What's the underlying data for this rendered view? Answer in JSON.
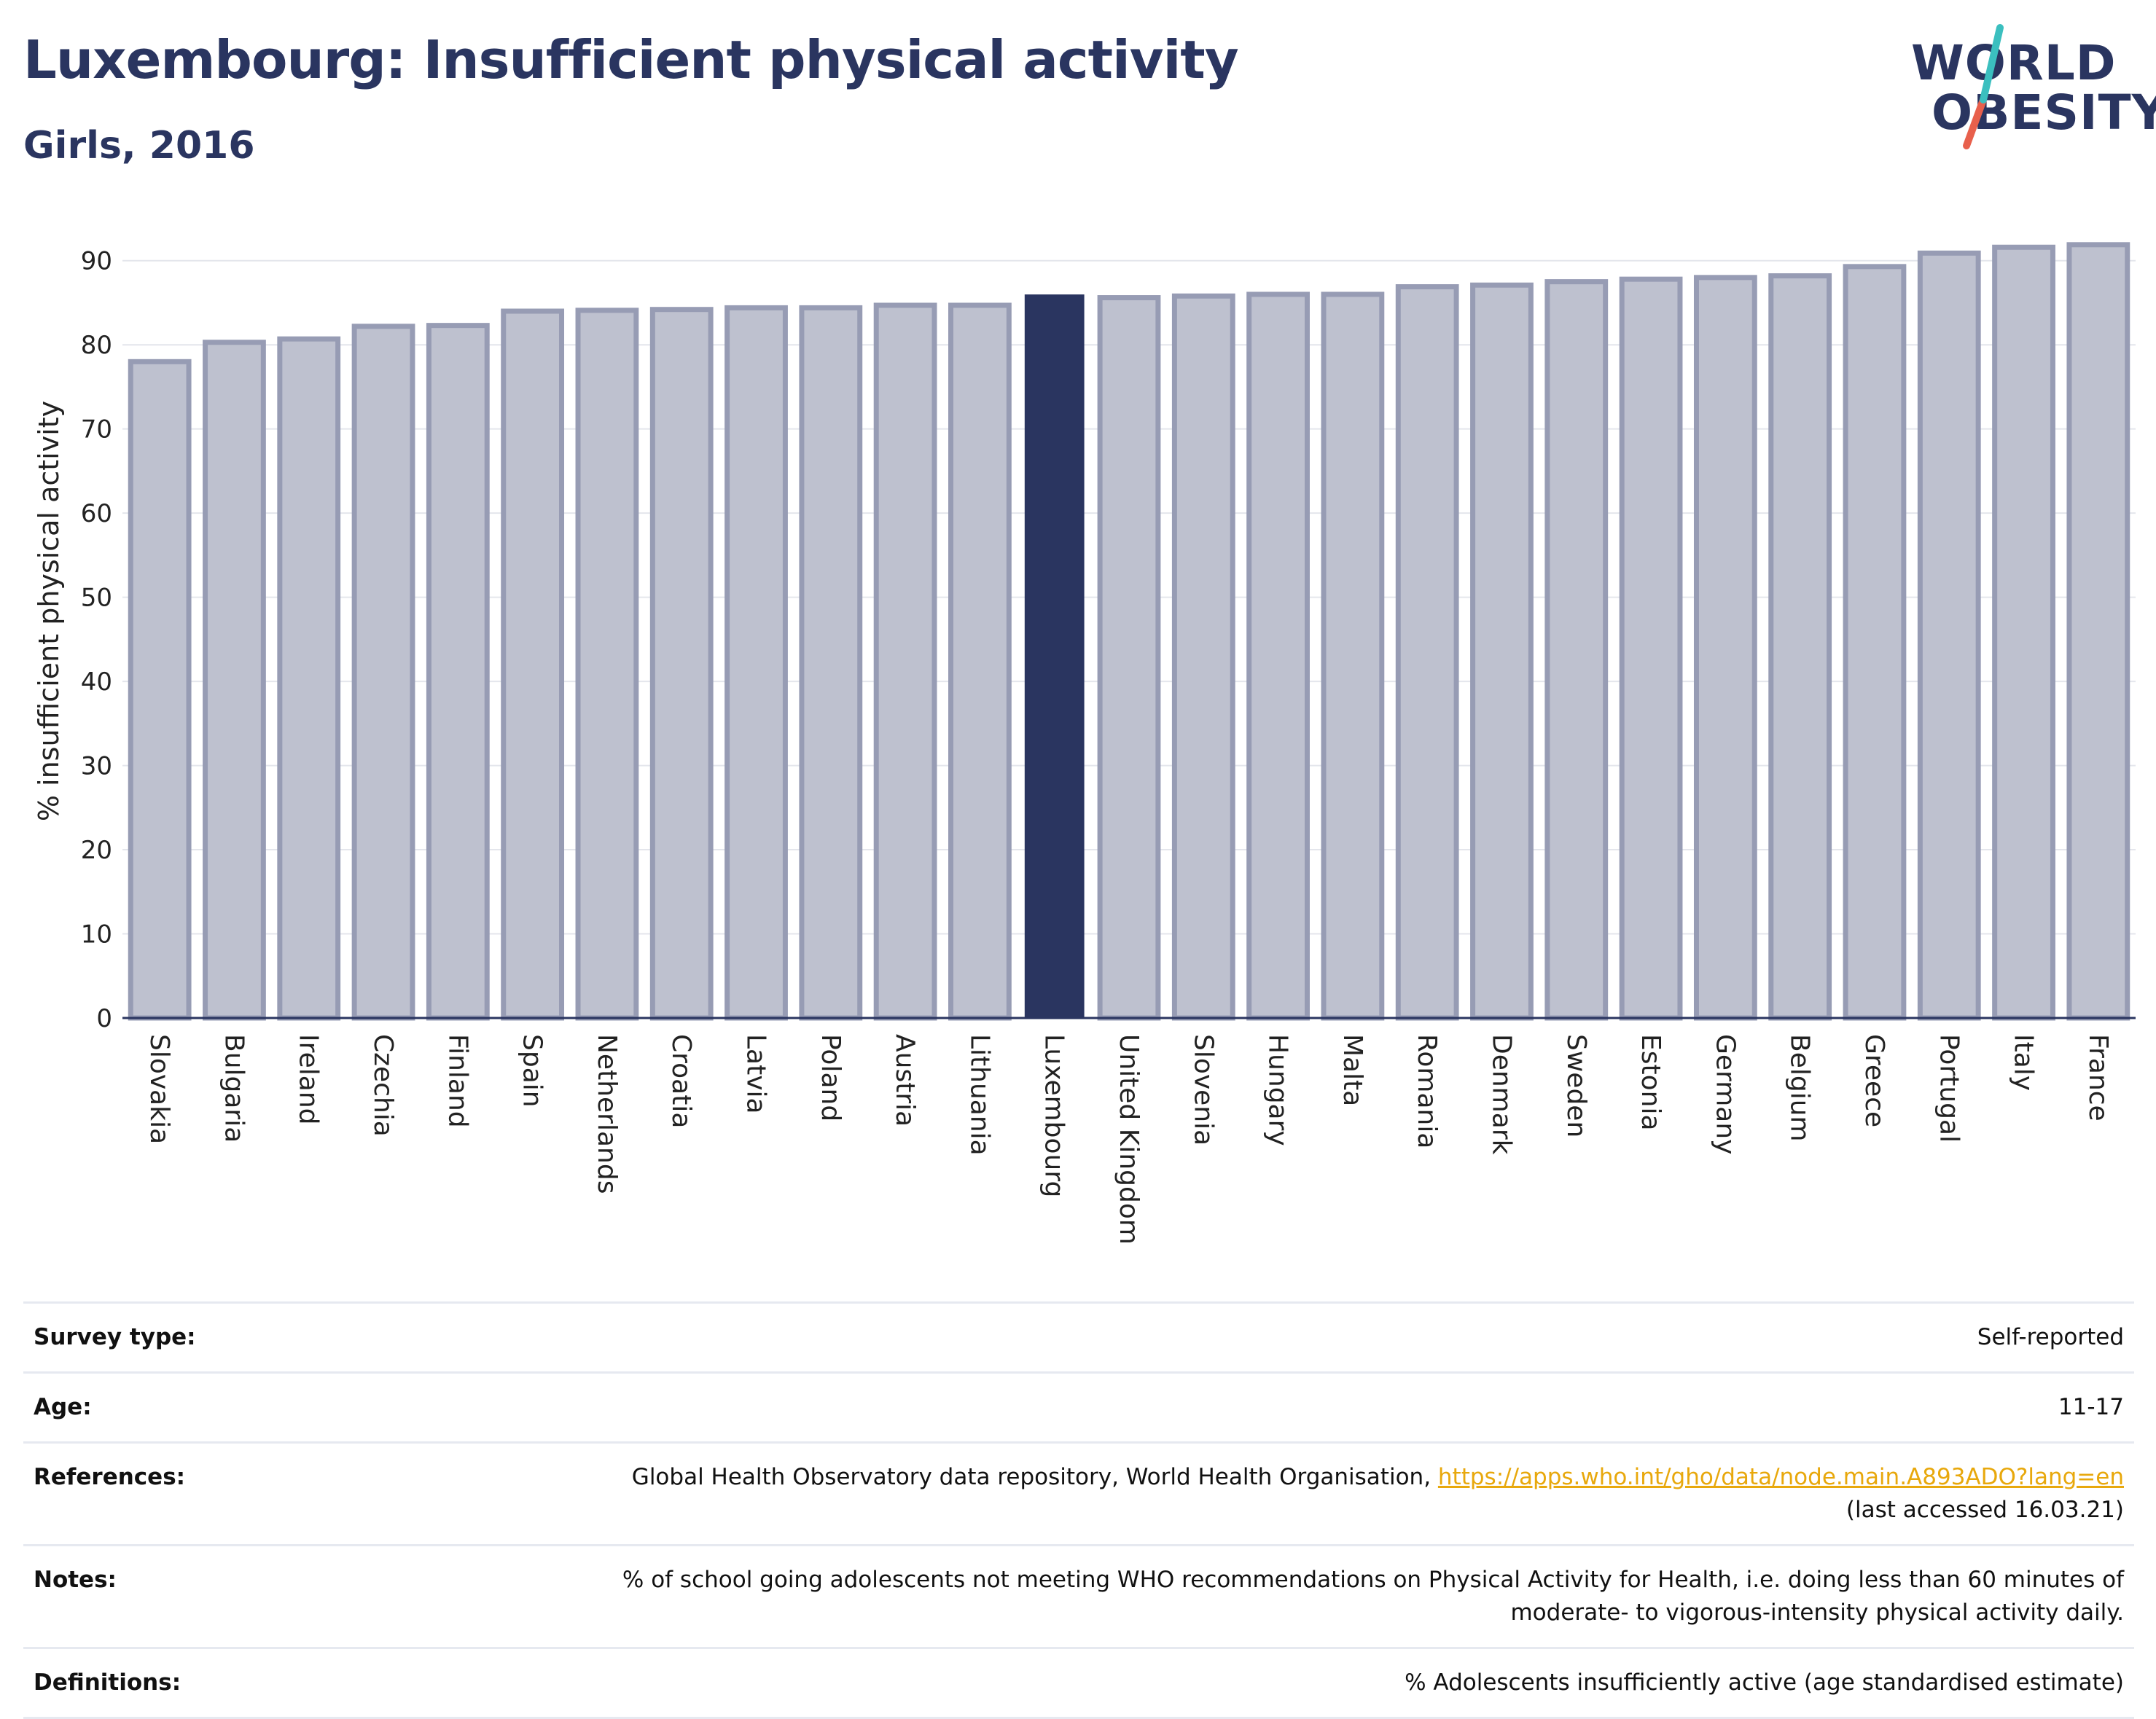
{
  "header": {
    "title": "Luxembourg: Insufficient physical activity",
    "subtitle": "Girls, 2016"
  },
  "logo": {
    "line1": "WORLD",
    "line2": "OBESITY",
    "colors": {
      "text": "#2a3560",
      "slash_top": "#3bbfbf",
      "slash_bottom": "#e8604c"
    }
  },
  "colors": {
    "bar_fill": "#bec1cf",
    "bar_stroke": "#979cb4",
    "highlight": "#2a3560",
    "grid": "#e4e6ec",
    "axis": "#2a3560"
  },
  "chart_data": {
    "type": "bar",
    "title": "Luxembourg: Insufficient physical activity",
    "subtitle": "Girls, 2016",
    "xlabel": "",
    "ylabel": "% insufficient physical activity",
    "ylim": [
      0,
      95
    ],
    "yticks": [
      0,
      10,
      20,
      30,
      40,
      50,
      60,
      70,
      80,
      90
    ],
    "grid": true,
    "highlight": "Luxembourg",
    "categories": [
      "Slovakia",
      "Bulgaria",
      "Ireland",
      "Czechia",
      "Finland",
      "Spain",
      "Netherlands",
      "Croatia",
      "Latvia",
      "Poland",
      "Austria",
      "Lithuania",
      "Luxembourg",
      "United Kingdom",
      "Slovenia",
      "Hungary",
      "Malta",
      "Romania",
      "Denmark",
      "Sweden",
      "Estonia",
      "Germany",
      "Belgium",
      "Greece",
      "Portugal",
      "Italy",
      "France"
    ],
    "values": [
      78.0,
      80.3,
      80.7,
      82.2,
      82.3,
      84.0,
      84.1,
      84.2,
      84.4,
      84.4,
      84.7,
      84.7,
      85.9,
      85.6,
      85.8,
      86.0,
      86.0,
      86.9,
      87.1,
      87.5,
      87.8,
      88.0,
      88.2,
      89.3,
      90.9,
      91.6,
      91.9
    ]
  },
  "info": {
    "rows": [
      {
        "key": "Survey type:",
        "value": "Self-reported"
      },
      {
        "key": "Age:",
        "value": "11-17"
      },
      {
        "key": "References:",
        "value": "Global Health Observatory data repository, World Health Organisation, ",
        "link": "https://apps.who.int/gho/data/node.main.A893ADO?lang=en",
        "value2": "(last accessed 16.03.21)"
      },
      {
        "key": "Notes:",
        "value": "% of school going adolescents not meeting WHO recommendations on Physical Activity for Health, i.e. doing less than 60 minutes of",
        "value2": "moderate- to vigorous-intensity physical activity daily."
      },
      {
        "key": "Definitions:",
        "value": "% Adolescents insufficiently active (age standardised estimate)"
      }
    ]
  }
}
